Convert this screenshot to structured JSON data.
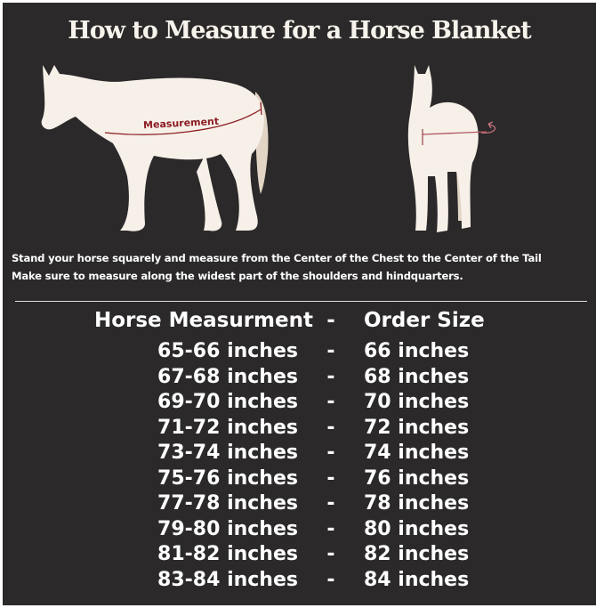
{
  "title": "How to Measure for a Horse Blanket",
  "illustration": {
    "measurement_label": "Measurement",
    "measure_color": "#8b1d22",
    "horse_color": "#f6f0e9"
  },
  "instructions": [
    "Stand your horse squarely and measure from the Center of the Chest to the Center of the Tail",
    "Make sure to measure along the widest part of the shoulders and hindquarters."
  ],
  "table": {
    "headers": {
      "left": "Horse Measurment",
      "sep": "-",
      "right": "Order Size"
    },
    "rows": [
      {
        "measurement": "65-66 inches",
        "sep": "-",
        "size": "66 inches"
      },
      {
        "measurement": "67-68 inches",
        "sep": "-",
        "size": "68 inches"
      },
      {
        "measurement": "69-70 inches",
        "sep": "-",
        "size": "70 inches"
      },
      {
        "measurement": "71-72 inches",
        "sep": "-",
        "size": "72 inches"
      },
      {
        "measurement": "73-74 inches",
        "sep": "-",
        "size": "74 inches"
      },
      {
        "measurement": "75-76 inches",
        "sep": "-",
        "size": "76 inches"
      },
      {
        "measurement": "77-78 inches",
        "sep": "-",
        "size": "78 inches"
      },
      {
        "measurement": "79-80 inches",
        "sep": "-",
        "size": "80 inches"
      },
      {
        "measurement": "81-82 inches",
        "sep": "-",
        "size": "82 inches"
      },
      {
        "measurement": "83-84 inches",
        "sep": "-",
        "size": "84 inches"
      }
    ]
  }
}
